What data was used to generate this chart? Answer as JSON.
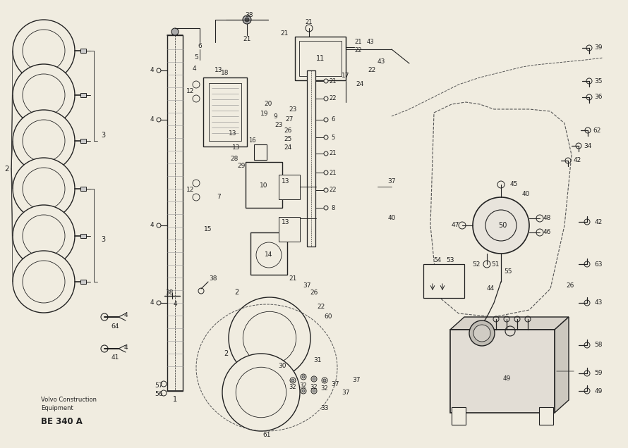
{
  "bg_color": "#f0ece0",
  "line_color": "#222222",
  "fig_width": 8.9,
  "fig_height": 6.36,
  "subtitle_line1": "Volvo Construction",
  "subtitle_line2": "Equipment",
  "subtitle_line3": "BE 340 A"
}
